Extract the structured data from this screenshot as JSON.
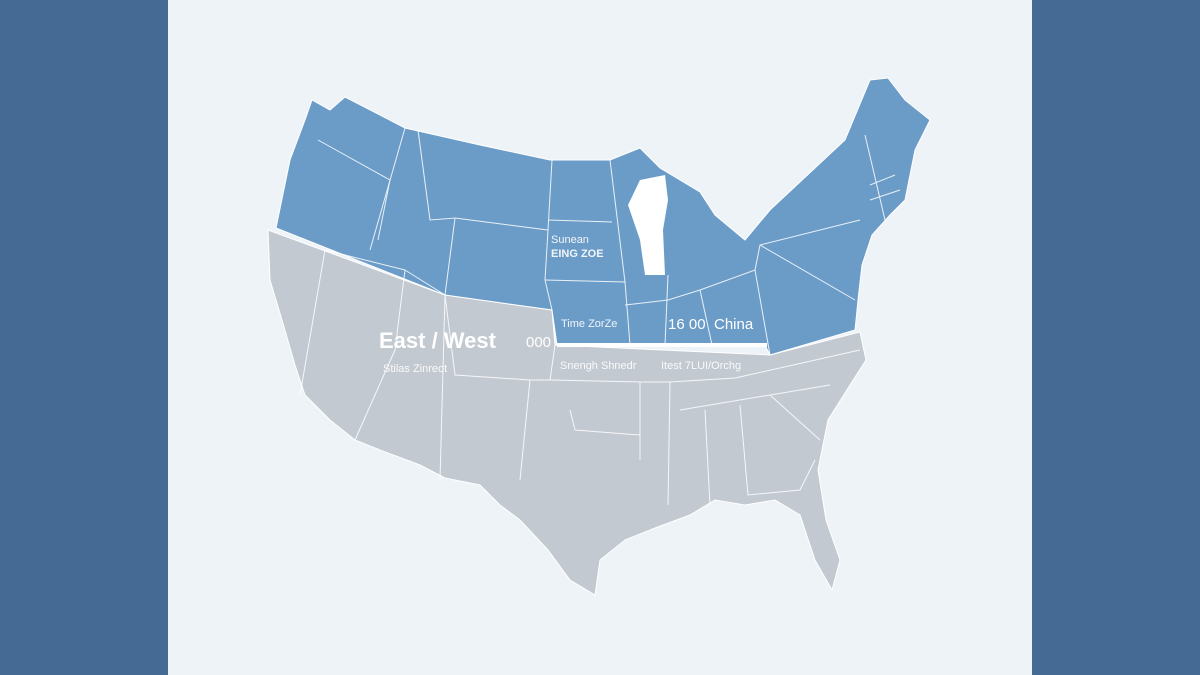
{
  "colors": {
    "side_panel": "#456a93",
    "background": "#eef3f8",
    "north_region": "#6b9cc8",
    "south_region": "#c3c9d1",
    "borders": "#ffffff"
  },
  "labels": {
    "region_title": "East / West",
    "north_center_line1": "Sunean",
    "north_center_line2": "EING ZOE",
    "time_zone": "Time ZorZe",
    "east_numbers": "16  00",
    "east_country": "China",
    "divider_number": "000",
    "southwest_caption": "Stilas Zinreot",
    "south_center_caption": "Snengh Shnedr",
    "southeast_caption": "Itest 7LUI/Orchg"
  }
}
